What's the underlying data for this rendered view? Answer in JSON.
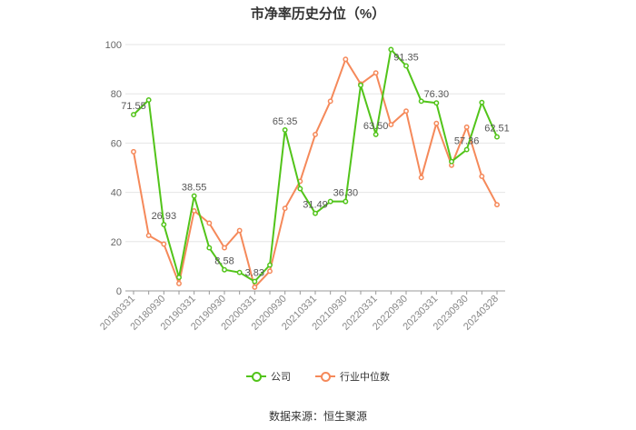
{
  "chart_data": {
    "type": "line",
    "title": "市净率历史分位（%）",
    "ylim": [
      0,
      100
    ],
    "yticks": [
      0,
      20,
      40,
      60,
      80,
      100
    ],
    "grid": true,
    "legend_position": "bottom",
    "x_tick_labels": [
      "20180331",
      "20180930",
      "20190331",
      "20190930",
      "20200331",
      "20200930",
      "20210331",
      "20210930",
      "20220331",
      "20220930",
      "20230331",
      "20230930",
      "20240328"
    ],
    "x": [
      "20180331",
      "20180630",
      "20180930",
      "20181231",
      "20190331",
      "20190630",
      "20190930",
      "20191231",
      "20200331",
      "20200630",
      "20200930",
      "20201231",
      "20210331",
      "20210630",
      "20210930",
      "20211231",
      "20220331",
      "20220630",
      "20220930",
      "20221231",
      "20230331",
      "20230630",
      "20230930",
      "20231231",
      "20240328"
    ],
    "series": [
      {
        "name": "公司",
        "color": "#52c41a",
        "values": [
          71.55,
          77.5,
          26.93,
          5.5,
          38.55,
          17.5,
          8.58,
          7.5,
          3.83,
          10.5,
          65.35,
          41.5,
          31.49,
          36.3,
          36.3,
          83.5,
          63.5,
          98.0,
          91.35,
          77.0,
          76.3,
          52.5,
          57.36,
          76.5,
          62.51
        ],
        "labels": {
          "0": "71.55",
          "2": "26.93",
          "4": "38.55",
          "6": "8.58",
          "8": "3.83",
          "10": "65.35",
          "12": "31.49",
          "14": "36.30",
          "16": "63.50",
          "18": "91.35",
          "20": "76.30",
          "22": "57.36",
          "24": "62.51"
        }
      },
      {
        "name": "行业中位数",
        "color": "#f5895a",
        "values": [
          56.5,
          22.5,
          19.0,
          3.0,
          32.5,
          27.5,
          17.5,
          24.5,
          1.5,
          8.0,
          33.5,
          44.5,
          63.5,
          77.0,
          94.0,
          84.0,
          88.5,
          67.5,
          73.0,
          46.0,
          68.0,
          51.0,
          66.5,
          46.5,
          35.0
        ]
      }
    ]
  },
  "legend": {
    "company": "公司",
    "industry": "行业中位数"
  },
  "footer": {
    "source": "数据来源：恒生聚源"
  }
}
